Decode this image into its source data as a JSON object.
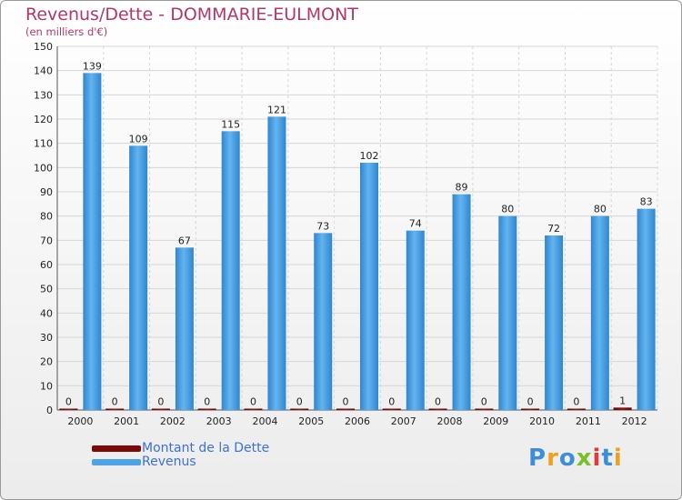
{
  "title": "Revenus/Dette - DOMMARIE-EULMONT",
  "subtitle": "(en milliers d'€)",
  "logo_text": "Proxiti",
  "chart_data": {
    "type": "bar",
    "categories": [
      "2000",
      "2001",
      "2002",
      "2003",
      "2004",
      "2005",
      "2006",
      "2007",
      "2008",
      "2009",
      "2010",
      "2011",
      "2012"
    ],
    "series": [
      {
        "name": "Montant de la Dette",
        "color": "#7a0a0a",
        "values": [
          0,
          0,
          0,
          0,
          0,
          0,
          0,
          0,
          0,
          0,
          0,
          0,
          1
        ]
      },
      {
        "name": "Revenus",
        "color": "#4ea3e6",
        "values": [
          139,
          109,
          67,
          115,
          121,
          73,
          102,
          74,
          89,
          80,
          72,
          80,
          83
        ]
      }
    ],
    "ylim": [
      0,
      150
    ],
    "yticks": [
      0,
      10,
      20,
      30,
      40,
      50,
      60,
      70,
      80,
      90,
      100,
      110,
      120,
      130,
      140,
      150
    ],
    "grid": true,
    "legend_position": "bottom-left"
  }
}
